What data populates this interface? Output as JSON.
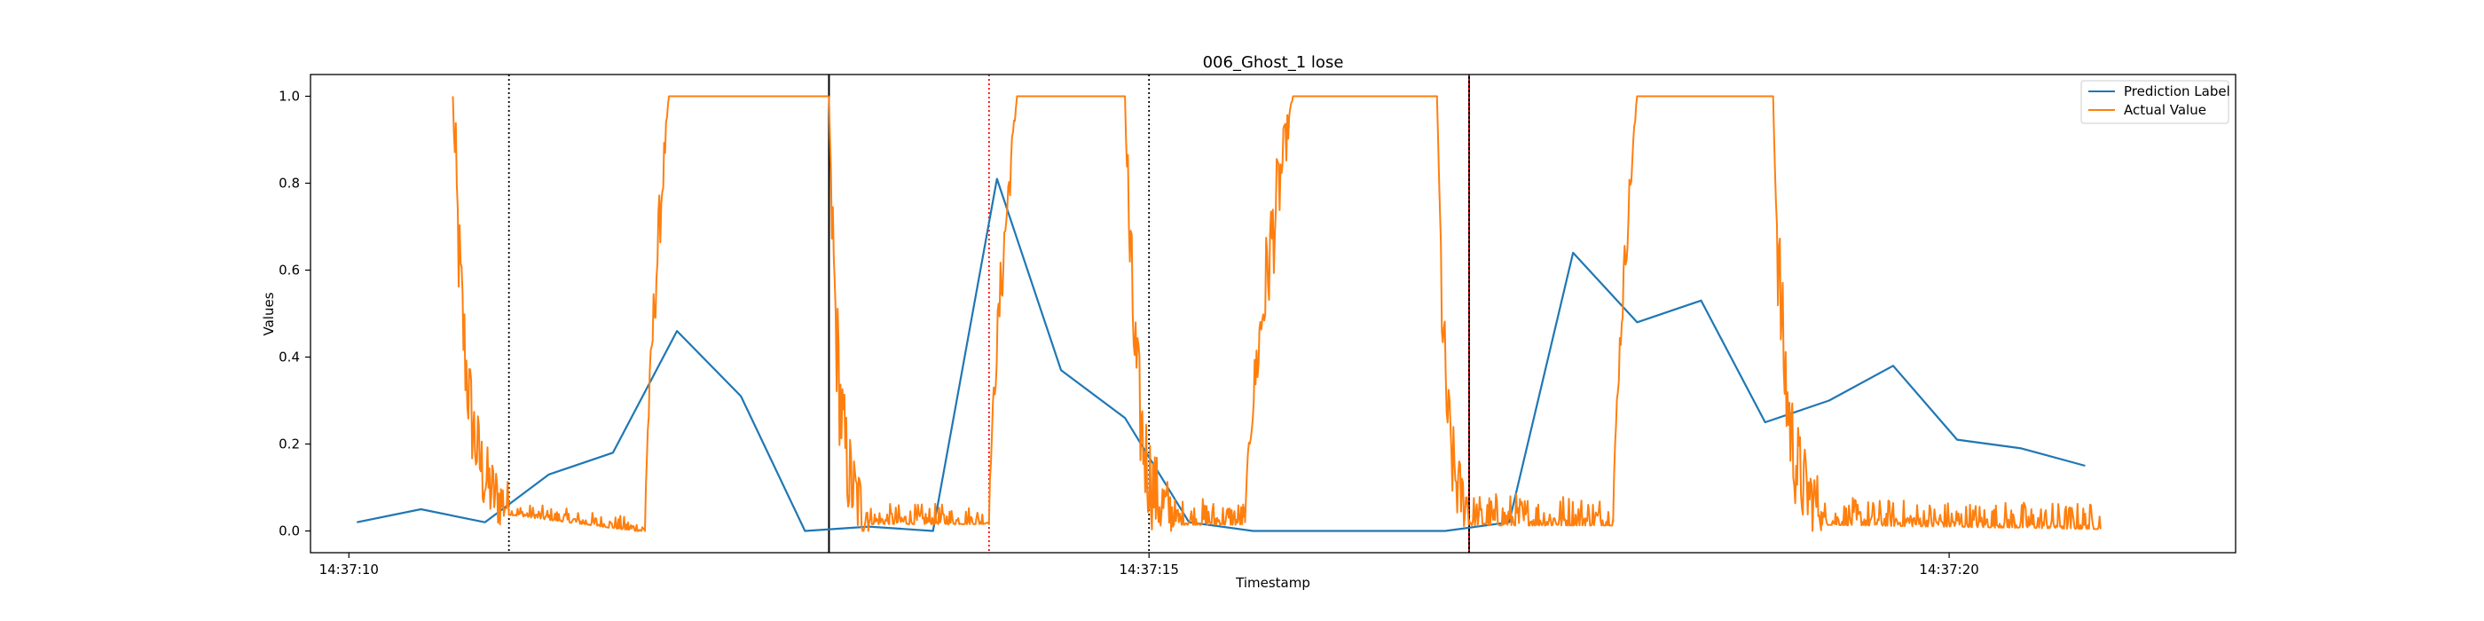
{
  "chart_data": {
    "type": "line",
    "title": "006_Ghost_1 lose",
    "xlabel": "Timestamp",
    "ylabel": "Values",
    "x_unit": "seconds after 14:37:10",
    "xlim": [
      -0.48,
      23.58
    ],
    "ylim": [
      -0.05,
      1.05
    ],
    "grid": false,
    "legend_position": "top-right",
    "xticks": [
      {
        "value": 0,
        "label": "14:37:10"
      },
      {
        "value": 10,
        "label": "14:37:15"
      },
      {
        "value": 20,
        "label": "14:37:20"
      }
    ],
    "yticks": [
      {
        "value": 0.0,
        "label": "0.0"
      },
      {
        "value": 0.2,
        "label": "0.2"
      },
      {
        "value": 0.4,
        "label": "0.4"
      },
      {
        "value": 0.6,
        "label": "0.6"
      },
      {
        "value": 0.8,
        "label": "0.8"
      },
      {
        "value": 1.0,
        "label": "1.0"
      }
    ],
    "vlines": [
      {
        "x": 2.0,
        "color": "#000000",
        "style": "dotted"
      },
      {
        "x": 6.0,
        "color": "#000000",
        "style": "solid"
      },
      {
        "x": 8.0,
        "color": "#ff0000",
        "style": "dotted"
      },
      {
        "x": 10.0,
        "color": "#000000",
        "style": "dotted"
      },
      {
        "x": 14.0,
        "color": "#000000",
        "style": "solid"
      },
      {
        "x": 14.0,
        "color": "#ff0000",
        "style": "dotted"
      }
    ],
    "series": [
      {
        "name": "Prediction Label",
        "color": "#1f77b4",
        "x": [
          0.1,
          0.9,
          1.7,
          2.5,
          3.3,
          4.1,
          4.9,
          5.7,
          6.5,
          7.3,
          8.1,
          8.9,
          9.7,
          10.5,
          11.3,
          12.1,
          12.9,
          13.7,
          14.5,
          15.3,
          16.1,
          16.9,
          17.7,
          18.5,
          19.3,
          20.1,
          20.9,
          21.7
        ],
        "values": [
          0.02,
          0.05,
          0.02,
          0.13,
          0.18,
          0.46,
          0.31,
          0.0,
          0.01,
          0.0,
          0.81,
          0.37,
          0.26,
          0.02,
          0.0,
          0.0,
          0.0,
          0.0,
          0.02,
          0.64,
          0.48,
          0.53,
          0.25,
          0.3,
          0.38,
          0.21,
          0.19,
          0.15
        ]
      },
      {
        "name": "Actual Value",
        "color": "#ff7f0e",
        "segments": [
          {
            "x0": 1.3,
            "x1": 2.0,
            "y0": 1.0,
            "y1": 0.05,
            "noise": 0.14,
            "shape": "fall"
          },
          {
            "x0": 2.0,
            "x1": 3.7,
            "y0": 0.04,
            "y1": 0.0,
            "noise": 0.02,
            "shape": "low"
          },
          {
            "x0": 3.7,
            "x1": 4.0,
            "y0": 0.0,
            "y1": 1.0,
            "noise": 0.08,
            "shape": "rise"
          },
          {
            "x0": 4.0,
            "x1": 6.0,
            "y0": 1.0,
            "y1": 1.0,
            "noise": 0.0,
            "shape": "high"
          },
          {
            "x0": 6.0,
            "x1": 6.5,
            "y0": 1.0,
            "y1": 0.03,
            "noise": 0.16,
            "shape": "fall"
          },
          {
            "x0": 6.5,
            "x1": 8.0,
            "y0": 0.02,
            "y1": 0.02,
            "noise": 0.03,
            "shape": "low"
          },
          {
            "x0": 8.0,
            "x1": 8.35,
            "y0": 0.02,
            "y1": 1.0,
            "noise": 0.08,
            "shape": "rise"
          },
          {
            "x0": 8.35,
            "x1": 9.7,
            "y0": 1.0,
            "y1": 1.0,
            "noise": 0.0,
            "shape": "high"
          },
          {
            "x0": 9.7,
            "x1": 10.3,
            "y0": 1.0,
            "y1": 0.03,
            "noise": 0.16,
            "shape": "fall"
          },
          {
            "x0": 10.3,
            "x1": 11.2,
            "y0": 0.02,
            "y1": 0.02,
            "noise": 0.04,
            "shape": "low"
          },
          {
            "x0": 11.2,
            "x1": 11.8,
            "y0": 0.02,
            "y1": 1.0,
            "noise": 0.12,
            "shape": "rise"
          },
          {
            "x0": 11.8,
            "x1": 13.6,
            "y0": 1.0,
            "y1": 1.0,
            "noise": 0.0,
            "shape": "high"
          },
          {
            "x0": 13.6,
            "x1": 14.0,
            "y0": 1.0,
            "y1": 0.05,
            "noise": 0.14,
            "shape": "fall"
          },
          {
            "x0": 14.0,
            "x1": 15.8,
            "y0": 0.02,
            "y1": 0.02,
            "noise": 0.05,
            "shape": "low"
          },
          {
            "x0": 15.8,
            "x1": 16.1,
            "y0": 0.02,
            "y1": 1.0,
            "noise": 0.06,
            "shape": "rise"
          },
          {
            "x0": 16.1,
            "x1": 17.8,
            "y0": 1.0,
            "y1": 1.0,
            "noise": 0.0,
            "shape": "high"
          },
          {
            "x0": 17.8,
            "x1": 18.4,
            "y0": 1.0,
            "y1": 0.05,
            "noise": 0.16,
            "shape": "fall"
          },
          {
            "x0": 18.4,
            "x1": 21.9,
            "y0": 0.02,
            "y1": 0.01,
            "noise": 0.04,
            "shape": "low"
          }
        ]
      }
    ]
  }
}
